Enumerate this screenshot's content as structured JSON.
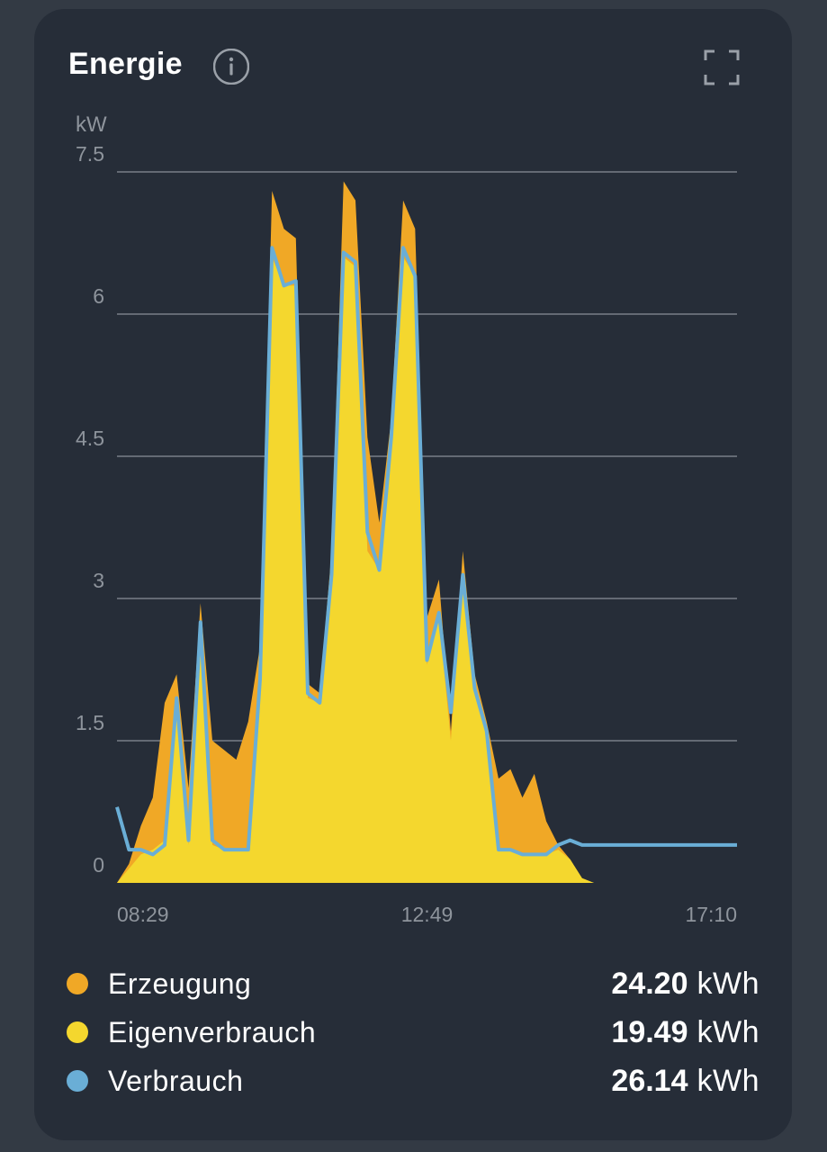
{
  "card": {
    "title": "Energie",
    "info_icon": "info-icon",
    "expand_icon": "fullscreen-icon"
  },
  "chart_data": {
    "type": "area",
    "ylabel": "kW",
    "ylim": [
      0,
      7.5
    ],
    "yticks": [
      "7.5",
      "6",
      "4.5",
      "3",
      "1.5",
      "0"
    ],
    "ytick_values": [
      7.5,
      6,
      4.5,
      3,
      1.5,
      0
    ],
    "xtick_labels": [
      "08:29",
      "12:49",
      "17:10"
    ],
    "x_start": "08:29",
    "x_end": "17:10",
    "grid": true,
    "x": [
      "08:29",
      "08:39",
      "08:49",
      "08:59",
      "09:09",
      "09:19",
      "09:29",
      "09:39",
      "09:49",
      "09:59",
      "10:09",
      "10:19",
      "10:29",
      "10:39",
      "10:49",
      "10:59",
      "11:09",
      "11:19",
      "11:29",
      "11:39",
      "11:49",
      "11:59",
      "12:09",
      "12:19",
      "12:29",
      "12:39",
      "12:49",
      "12:59",
      "13:09",
      "13:19",
      "13:29",
      "13:39",
      "13:49",
      "13:59",
      "14:09",
      "14:19",
      "14:29",
      "14:39",
      "14:49",
      "14:59",
      "15:09",
      "15:19",
      "15:29",
      "15:39",
      "15:49",
      "15:59",
      "16:09",
      "16:19",
      "16:29",
      "16:39",
      "16:49",
      "16:59",
      "17:10"
    ],
    "series": [
      {
        "name": "Erzeugung",
        "color": "#f0a826",
        "values": [
          0.0,
          0.2,
          0.6,
          0.9,
          1.9,
          2.2,
          1.0,
          2.95,
          1.5,
          1.4,
          1.3,
          1.7,
          2.5,
          7.3,
          6.9,
          6.8,
          2.1,
          2.0,
          3.5,
          7.4,
          7.2,
          4.7,
          3.8,
          4.9,
          7.2,
          6.9,
          2.8,
          3.2,
          1.6,
          3.5,
          2.2,
          1.7,
          1.1,
          1.2,
          0.9,
          1.15,
          0.65,
          0.4,
          0.25,
          0.05,
          0.0,
          0.0,
          0.0,
          0.0,
          0.0,
          0.0,
          0.0,
          0.0,
          0.0,
          0.0,
          0.0,
          0.0,
          0.0
        ]
      },
      {
        "name": "Eigenverbrauch",
        "color": "#f4d72e",
        "values": [
          0.0,
          0.15,
          0.3,
          0.35,
          0.45,
          1.9,
          0.4,
          2.7,
          0.4,
          0.35,
          0.35,
          0.35,
          2.1,
          6.6,
          6.3,
          6.3,
          1.95,
          1.9,
          3.2,
          6.6,
          6.5,
          3.5,
          3.3,
          4.6,
          6.6,
          6.4,
          2.3,
          2.8,
          1.5,
          3.2,
          2.0,
          1.55,
          0.35,
          0.35,
          0.3,
          0.3,
          0.3,
          0.35,
          0.25,
          0.05,
          0.0,
          0.0,
          0.0,
          0.0,
          0.0,
          0.0,
          0.0,
          0.0,
          0.0,
          0.0,
          0.0,
          0.0,
          0.0
        ]
      },
      {
        "name": "Verbrauch",
        "color": "#6aaed6",
        "values": [
          0.8,
          0.35,
          0.35,
          0.3,
          0.4,
          1.95,
          0.45,
          2.75,
          0.45,
          0.35,
          0.35,
          0.35,
          2.15,
          6.7,
          6.3,
          6.35,
          2.0,
          1.9,
          3.25,
          6.65,
          6.55,
          3.7,
          3.3,
          4.7,
          6.7,
          6.4,
          2.35,
          2.85,
          1.8,
          3.25,
          2.05,
          1.6,
          0.35,
          0.35,
          0.3,
          0.3,
          0.3,
          0.4,
          0.45,
          0.4,
          0.4,
          0.4,
          0.4,
          0.4,
          0.4,
          0.4,
          0.4,
          0.4,
          0.4,
          0.4,
          0.4,
          0.4,
          0.4
        ]
      }
    ]
  },
  "legend": {
    "items": [
      {
        "label": "Erzeugung",
        "value": "24.20",
        "unit": "kWh",
        "color": "#f0a826"
      },
      {
        "label": "Eigenverbrauch",
        "value": "19.49",
        "unit": "kWh",
        "color": "#f4d72e"
      },
      {
        "label": "Verbrauch",
        "value": "26.14",
        "unit": "kWh",
        "color": "#6aaed6"
      }
    ]
  }
}
